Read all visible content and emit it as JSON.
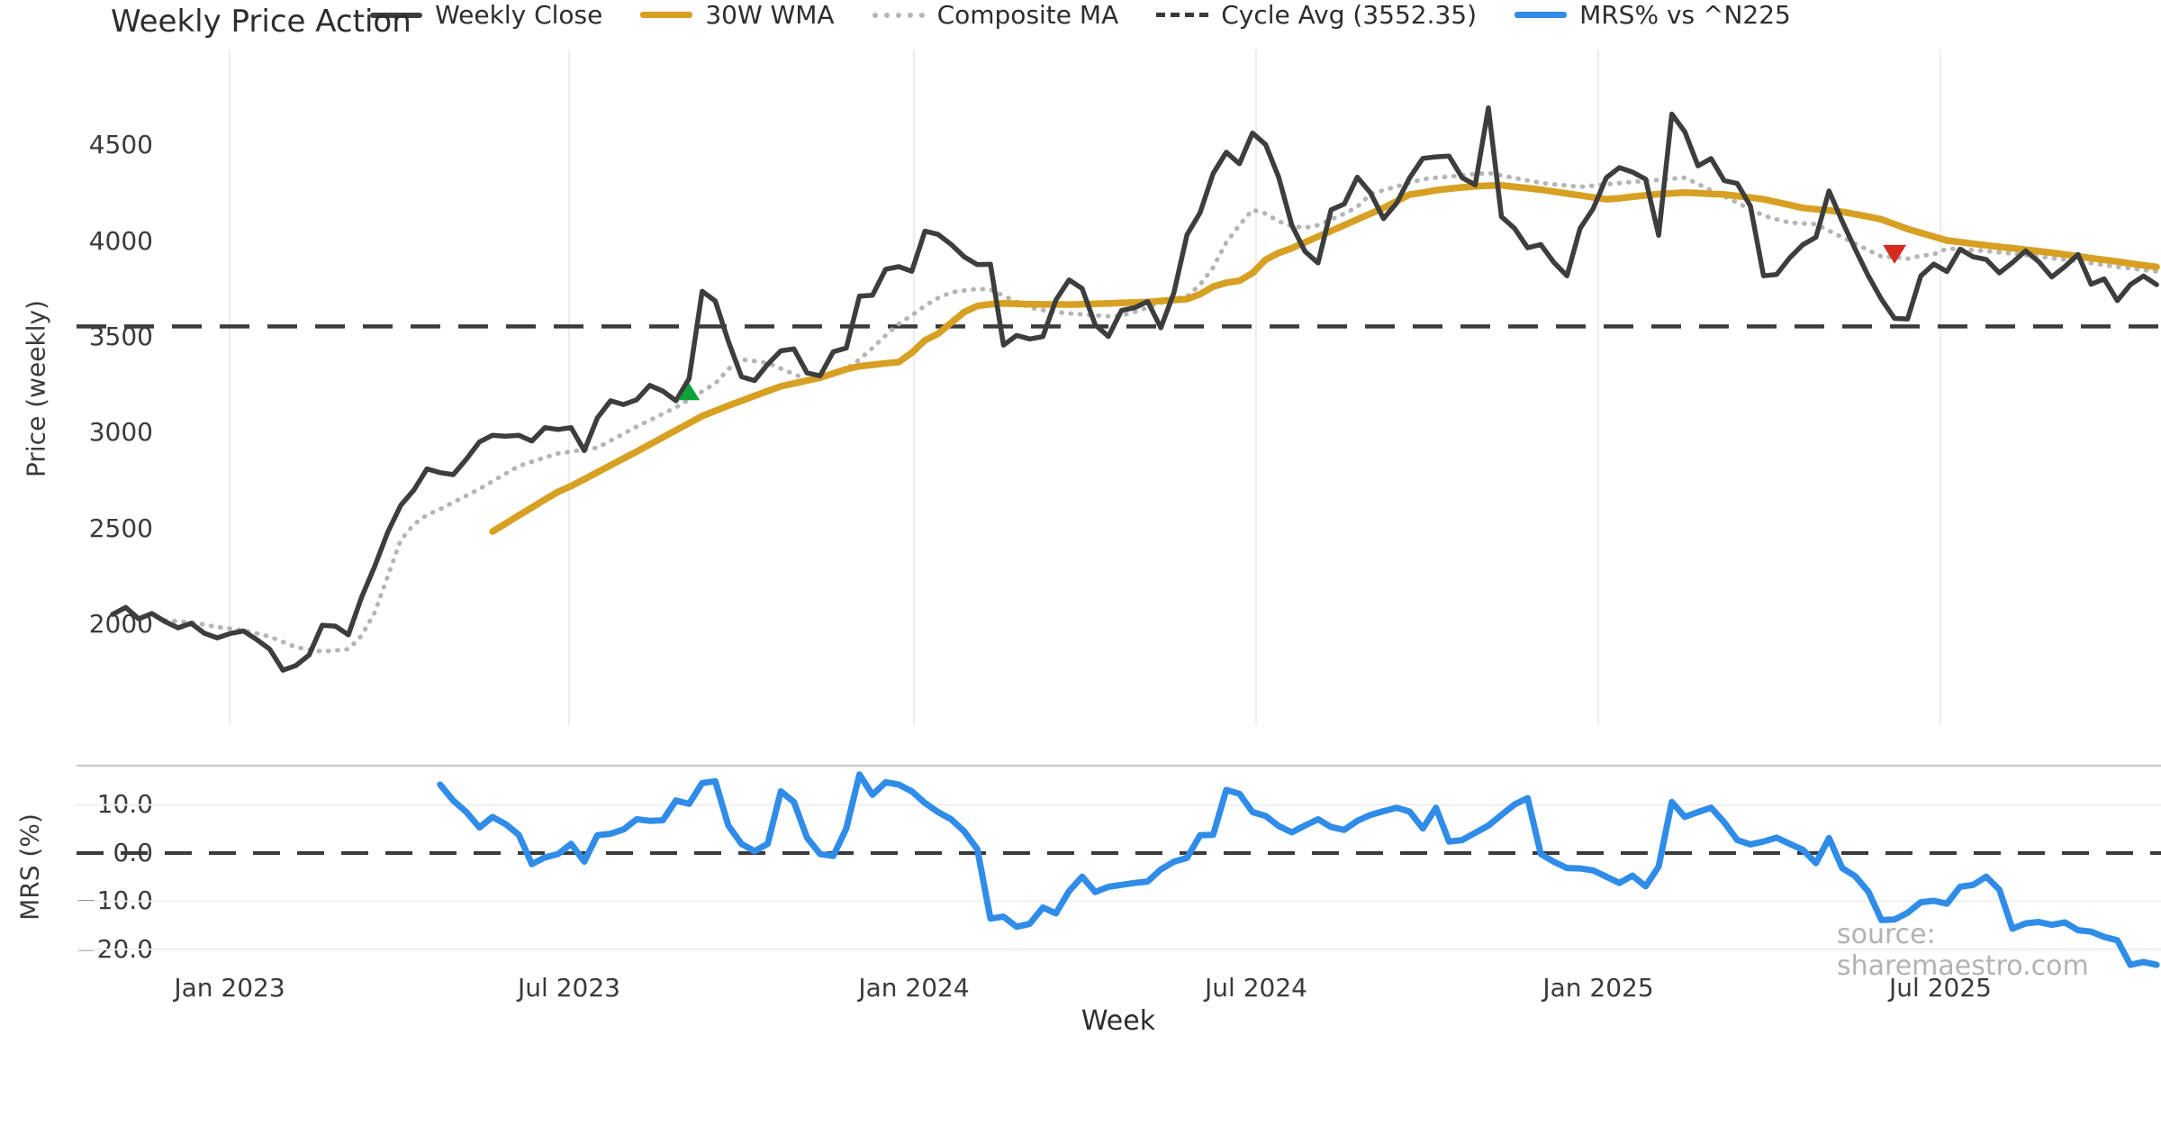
{
  "title": "Weekly Price Action",
  "watermark": "source: sharemaestro.com",
  "price_axis": {
    "label": "Price (weekly)",
    "ticks": [
      "4500",
      "4000",
      "3500",
      "3000",
      "2500",
      "2000"
    ]
  },
  "mrs_axis": {
    "label": "MRS (%)",
    "ticks": [
      "10.0",
      "0.0",
      "−10.0",
      "−20.0"
    ]
  },
  "x_axis": {
    "label": "Week",
    "ticks": [
      "Jan 2023",
      "Jul 2023",
      "Jan 2024",
      "Jul 2024",
      "Jan 2025",
      "Jul 2025"
    ]
  },
  "legend": {
    "items": [
      {
        "label": "Weekly Close",
        "style": "solid-dark"
      },
      {
        "label": "30W WMA",
        "style": "solid-gold"
      },
      {
        "label": "Composite MA",
        "style": "dotted"
      },
      {
        "label": "Cycle Avg (3552.35)",
        "style": "dashed"
      },
      {
        "label": "MRS% vs ^N225",
        "style": "solid-blue"
      }
    ]
  },
  "colors": {
    "weekly_close": "#3d3d3d",
    "wma": "#d7a022",
    "composite": "#b5b5b5",
    "cycle_avg": "#3a3a3a",
    "mrs": "#2f8ce8",
    "buy_marker": "#0ba43b",
    "sell_marker": "#d42a20",
    "grid": "#ececec",
    "spine": "#cccccc"
  },
  "chart_data": [
    {
      "type": "line",
      "panel": "price",
      "title": "Weekly Price Action",
      "xlabel": "Week",
      "ylabel": "Price (weekly)",
      "x_frequency": "weekly",
      "x_start_week": "2022-10-31",
      "x_tick_labels": [
        "Jan 2023",
        "Jul 2023",
        "Jan 2024",
        "Jul 2024",
        "Jan 2025",
        "Jul 2025"
      ],
      "ylim": [
        1700,
        4960
      ],
      "yticks": [
        2000,
        2500,
        3000,
        3500,
        4000,
        4500
      ],
      "grid": "vertical-only",
      "cycle_avg": 3552.35,
      "markers": [
        {
          "name": "buy-signal",
          "shape": "triangle-up",
          "color": "#0ba43b",
          "week_index": 44,
          "value": 3210
        },
        {
          "name": "sell-signal",
          "shape": "triangle-down",
          "color": "#d42a20",
          "week_index": 136,
          "value": 3930
        }
      ],
      "series": [
        {
          "name": "Weekly Close",
          "style": "solid",
          "color": "#3d3d3d",
          "start_index": 0,
          "values": [
            2051,
            2088,
            2028,
            2056,
            2014,
            1981,
            2005,
            1953,
            1929,
            1952,
            1965,
            1920,
            1870,
            1760,
            1785,
            1840,
            1995,
            1990,
            1945,
            2140,
            2300,
            2480,
            2620,
            2700,
            2810,
            2790,
            2780,
            2860,
            2950,
            2985,
            2980,
            2985,
            2955,
            3025,
            3015,
            3025,
            2905,
            3075,
            3165,
            3145,
            3170,
            3245,
            3215,
            3165,
            3280,
            3735,
            3685,
            3475,
            3290,
            3270,
            3355,
            3425,
            3435,
            3310,
            3295,
            3420,
            3440,
            3710,
            3715,
            3850,
            3864,
            3840,
            4049,
            4032,
            3980,
            3915,
            3874,
            3876,
            3455,
            3505,
            3487,
            3499,
            3690,
            3795,
            3750,
            3560,
            3500,
            3635,
            3650,
            3682,
            3545,
            3727,
            4030,
            4145,
            4350,
            4460,
            4400,
            4560,
            4500,
            4330,
            4080,
            3944,
            3883,
            4160,
            4190,
            4330,
            4249,
            4114,
            4195,
            4327,
            4428,
            4436,
            4440,
            4327,
            4290,
            4691,
            4124,
            4063,
            3962,
            3979,
            3886,
            3816,
            4063,
            4166,
            4327,
            4380,
            4357,
            4320,
            4027,
            4659,
            4566,
            4389,
            4427,
            4312,
            4297,
            4180,
            3816,
            3823,
            3910,
            3978,
            4017,
            4258,
            4101,
            3955,
            3815,
            3694,
            3594,
            3591,
            3815,
            3877,
            3838,
            3955,
            3915,
            3901,
            3831,
            3885,
            3946,
            3890,
            3810,
            3864,
            3927,
            3772,
            3800,
            3687,
            3770,
            3815,
            3770
          ]
        },
        {
          "name": "30W WMA",
          "style": "solid",
          "color": "#d7a022",
          "start_index": 29,
          "values": [
            2483,
            2525,
            2567,
            2608,
            2650,
            2690,
            2720,
            2756,
            2792,
            2828,
            2864,
            2900,
            2937,
            2974,
            3011,
            3048,
            3085,
            3112,
            3139,
            3165,
            3190,
            3215,
            3240,
            3255,
            3270,
            3285,
            3307,
            3329,
            3345,
            3352,
            3360,
            3366,
            3415,
            3480,
            3514,
            3571,
            3627,
            3659,
            3668,
            3673,
            3670,
            3668,
            3667,
            3667,
            3666,
            3668,
            3670,
            3672,
            3675,
            3677,
            3680,
            3685,
            3690,
            3695,
            3720,
            3760,
            3780,
            3790,
            3830,
            3900,
            3935,
            3960,
            3990,
            4020,
            4050,
            4080,
            4110,
            4140,
            4170,
            4205,
            4240,
            4250,
            4262,
            4270,
            4277,
            4282,
            4286,
            4288,
            4280,
            4273,
            4265,
            4255,
            4245,
            4235,
            4225,
            4215,
            4220,
            4228,
            4235,
            4242,
            4246,
            4250,
            4247,
            4243,
            4240,
            4232,
            4224,
            4215,
            4200,
            4185,
            4170,
            4163,
            4157,
            4150,
            4137,
            4124,
            4110,
            4085,
            4060,
            4040,
            4020,
            4000,
            3992,
            3983,
            3975,
            3967,
            3960,
            3952,
            3944,
            3936,
            3927,
            3918,
            3908,
            3899,
            3890,
            3880,
            3871,
            3862
          ]
        },
        {
          "name": "Composite MA",
          "style": "dotted",
          "color": "#b5b5b5",
          "start_index": 4,
          "values": [
            2020,
            2015,
            2010,
            1998,
            1985,
            1977,
            1968,
            1952,
            1935,
            1908,
            1880,
            1869,
            1858,
            1864,
            1870,
            1940,
            2060,
            2250,
            2440,
            2520,
            2570,
            2600,
            2635,
            2670,
            2705,
            2745,
            2785,
            2825,
            2847,
            2869,
            2890,
            2900,
            2910,
            2920,
            2957,
            2993,
            3030,
            3063,
            3097,
            3130,
            3172,
            3213,
            3255,
            3330,
            3380,
            3372,
            3362,
            3333,
            3304,
            3275,
            3280,
            3300,
            3330,
            3380,
            3440,
            3505,
            3565,
            3610,
            3660,
            3700,
            3730,
            3740,
            3747,
            3745,
            3712,
            3680,
            3650,
            3637,
            3627,
            3620,
            3615,
            3610,
            3605,
            3610,
            3627,
            3650,
            3675,
            3695,
            3708,
            3770,
            3860,
            3990,
            4080,
            4160,
            4140,
            4100,
            4075,
            4066,
            4080,
            4110,
            4140,
            4175,
            4242,
            4262,
            4281,
            4301,
            4320,
            4327,
            4333,
            4340,
            4346,
            4352,
            4339,
            4326,
            4313,
            4300,
            4293,
            4287,
            4280,
            4286,
            4293,
            4299,
            4305,
            4311,
            4316,
            4322,
            4327,
            4295,
            4262,
            4230,
            4197,
            4163,
            4130,
            4111,
            4093,
            4089,
            4085,
            4051,
            4017,
            3984,
            3950,
            3917,
            3913,
            3905,
            3920,
            3928,
            3958,
            3954,
            3950,
            3945,
            3938,
            3932,
            3925,
            3917,
            3908,
            3900,
            3891,
            3882,
            3872,
            3863,
            3855,
            3846,
            3838
          ]
        },
        {
          "name": "Cycle Avg (3552.35)",
          "style": "dashed",
          "color": "#3a3a3a",
          "constant": 3552.35
        }
      ]
    },
    {
      "type": "line",
      "panel": "mrs",
      "ylabel": "MRS (%)",
      "x_frequency": "weekly",
      "ylim": [
        -24.5,
        18.5
      ],
      "yticks": [
        10.0,
        0.0,
        -10.0,
        -20.0
      ],
      "zero_line": "dashed",
      "series": [
        {
          "name": "MRS% vs ^N225",
          "style": "solid",
          "color": "#2f8ce8",
          "start_index": 25,
          "values": [
            14.2,
            10.9,
            8.5,
            5.3,
            7.5,
            6.0,
            3.8,
            -2.3,
            -0.9,
            -0.2,
            1.9,
            -1.8,
            3.7,
            4.0,
            4.9,
            7.0,
            6.7,
            6.8,
            10.9,
            10.2,
            14.5,
            14.9,
            5.7,
            1.9,
            0.4,
            1.9,
            12.8,
            10.6,
            3.2,
            -0.2,
            -0.6,
            5.1,
            16.3,
            12.1,
            14.7,
            14.2,
            12.8,
            10.4,
            8.5,
            7.0,
            4.5,
            0.8,
            -13.6,
            -13.2,
            -15.3,
            -14.7,
            -11.3,
            -12.5,
            -7.9,
            -4.9,
            -8.1,
            -7.0,
            -6.6,
            -6.2,
            -5.9,
            -3.4,
            -1.8,
            -1.0,
            3.7,
            3.8,
            13.1,
            12.3,
            8.5,
            7.7,
            5.6,
            4.3,
            5.7,
            7.0,
            5.4,
            4.8,
            6.7,
            7.9,
            8.7,
            9.4,
            8.6,
            5.1,
            9.4,
            2.4,
            2.7,
            4.2,
            5.7,
            7.9,
            10.1,
            11.4,
            -0.2,
            -1.8,
            -3.1,
            -3.2,
            -3.6,
            -4.9,
            -6.2,
            -4.7,
            -6.9,
            -2.8,
            10.6,
            7.5,
            8.5,
            9.4,
            6.4,
            2.7,
            1.8,
            2.4,
            3.2,
            1.9,
            0.7,
            -2.1,
            3.1,
            -3.1,
            -4.8,
            -8.0,
            -13.9,
            -13.8,
            -12.4,
            -10.2,
            -9.9,
            -10.5,
            -7.0,
            -6.6,
            -4.9,
            -7.6,
            -15.7,
            -14.6,
            -14.3,
            -14.9,
            -14.4,
            -16.0,
            -16.3,
            -17.4,
            -18.1,
            -23.2,
            -22.6,
            -23.2
          ]
        }
      ]
    }
  ]
}
